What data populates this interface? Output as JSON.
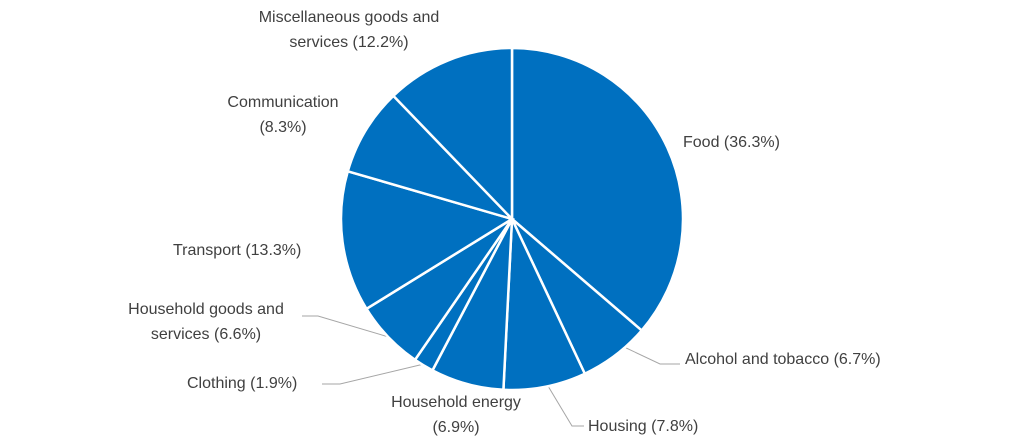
{
  "chart_data": {
    "type": "pie",
    "categories": [
      "Food",
      "Alcohol and tobacco",
      "Housing",
      "Household energy",
      "Clothing",
      "Household goods and services",
      "Transport",
      "Communication",
      "Miscellaneous goods and services"
    ],
    "values": [
      36.3,
      6.7,
      7.8,
      6.9,
      1.9,
      6.6,
      13.3,
      8.3,
      12.2
    ],
    "value_labels": [
      "(36.3%)",
      "(6.7%)",
      "(7.8%)",
      "(6.9%)",
      "(1.9%)",
      "(6.6%)",
      "(13.3%)",
      "(8.3%)",
      "(12.2%)"
    ],
    "color": "#0070c0"
  }
}
